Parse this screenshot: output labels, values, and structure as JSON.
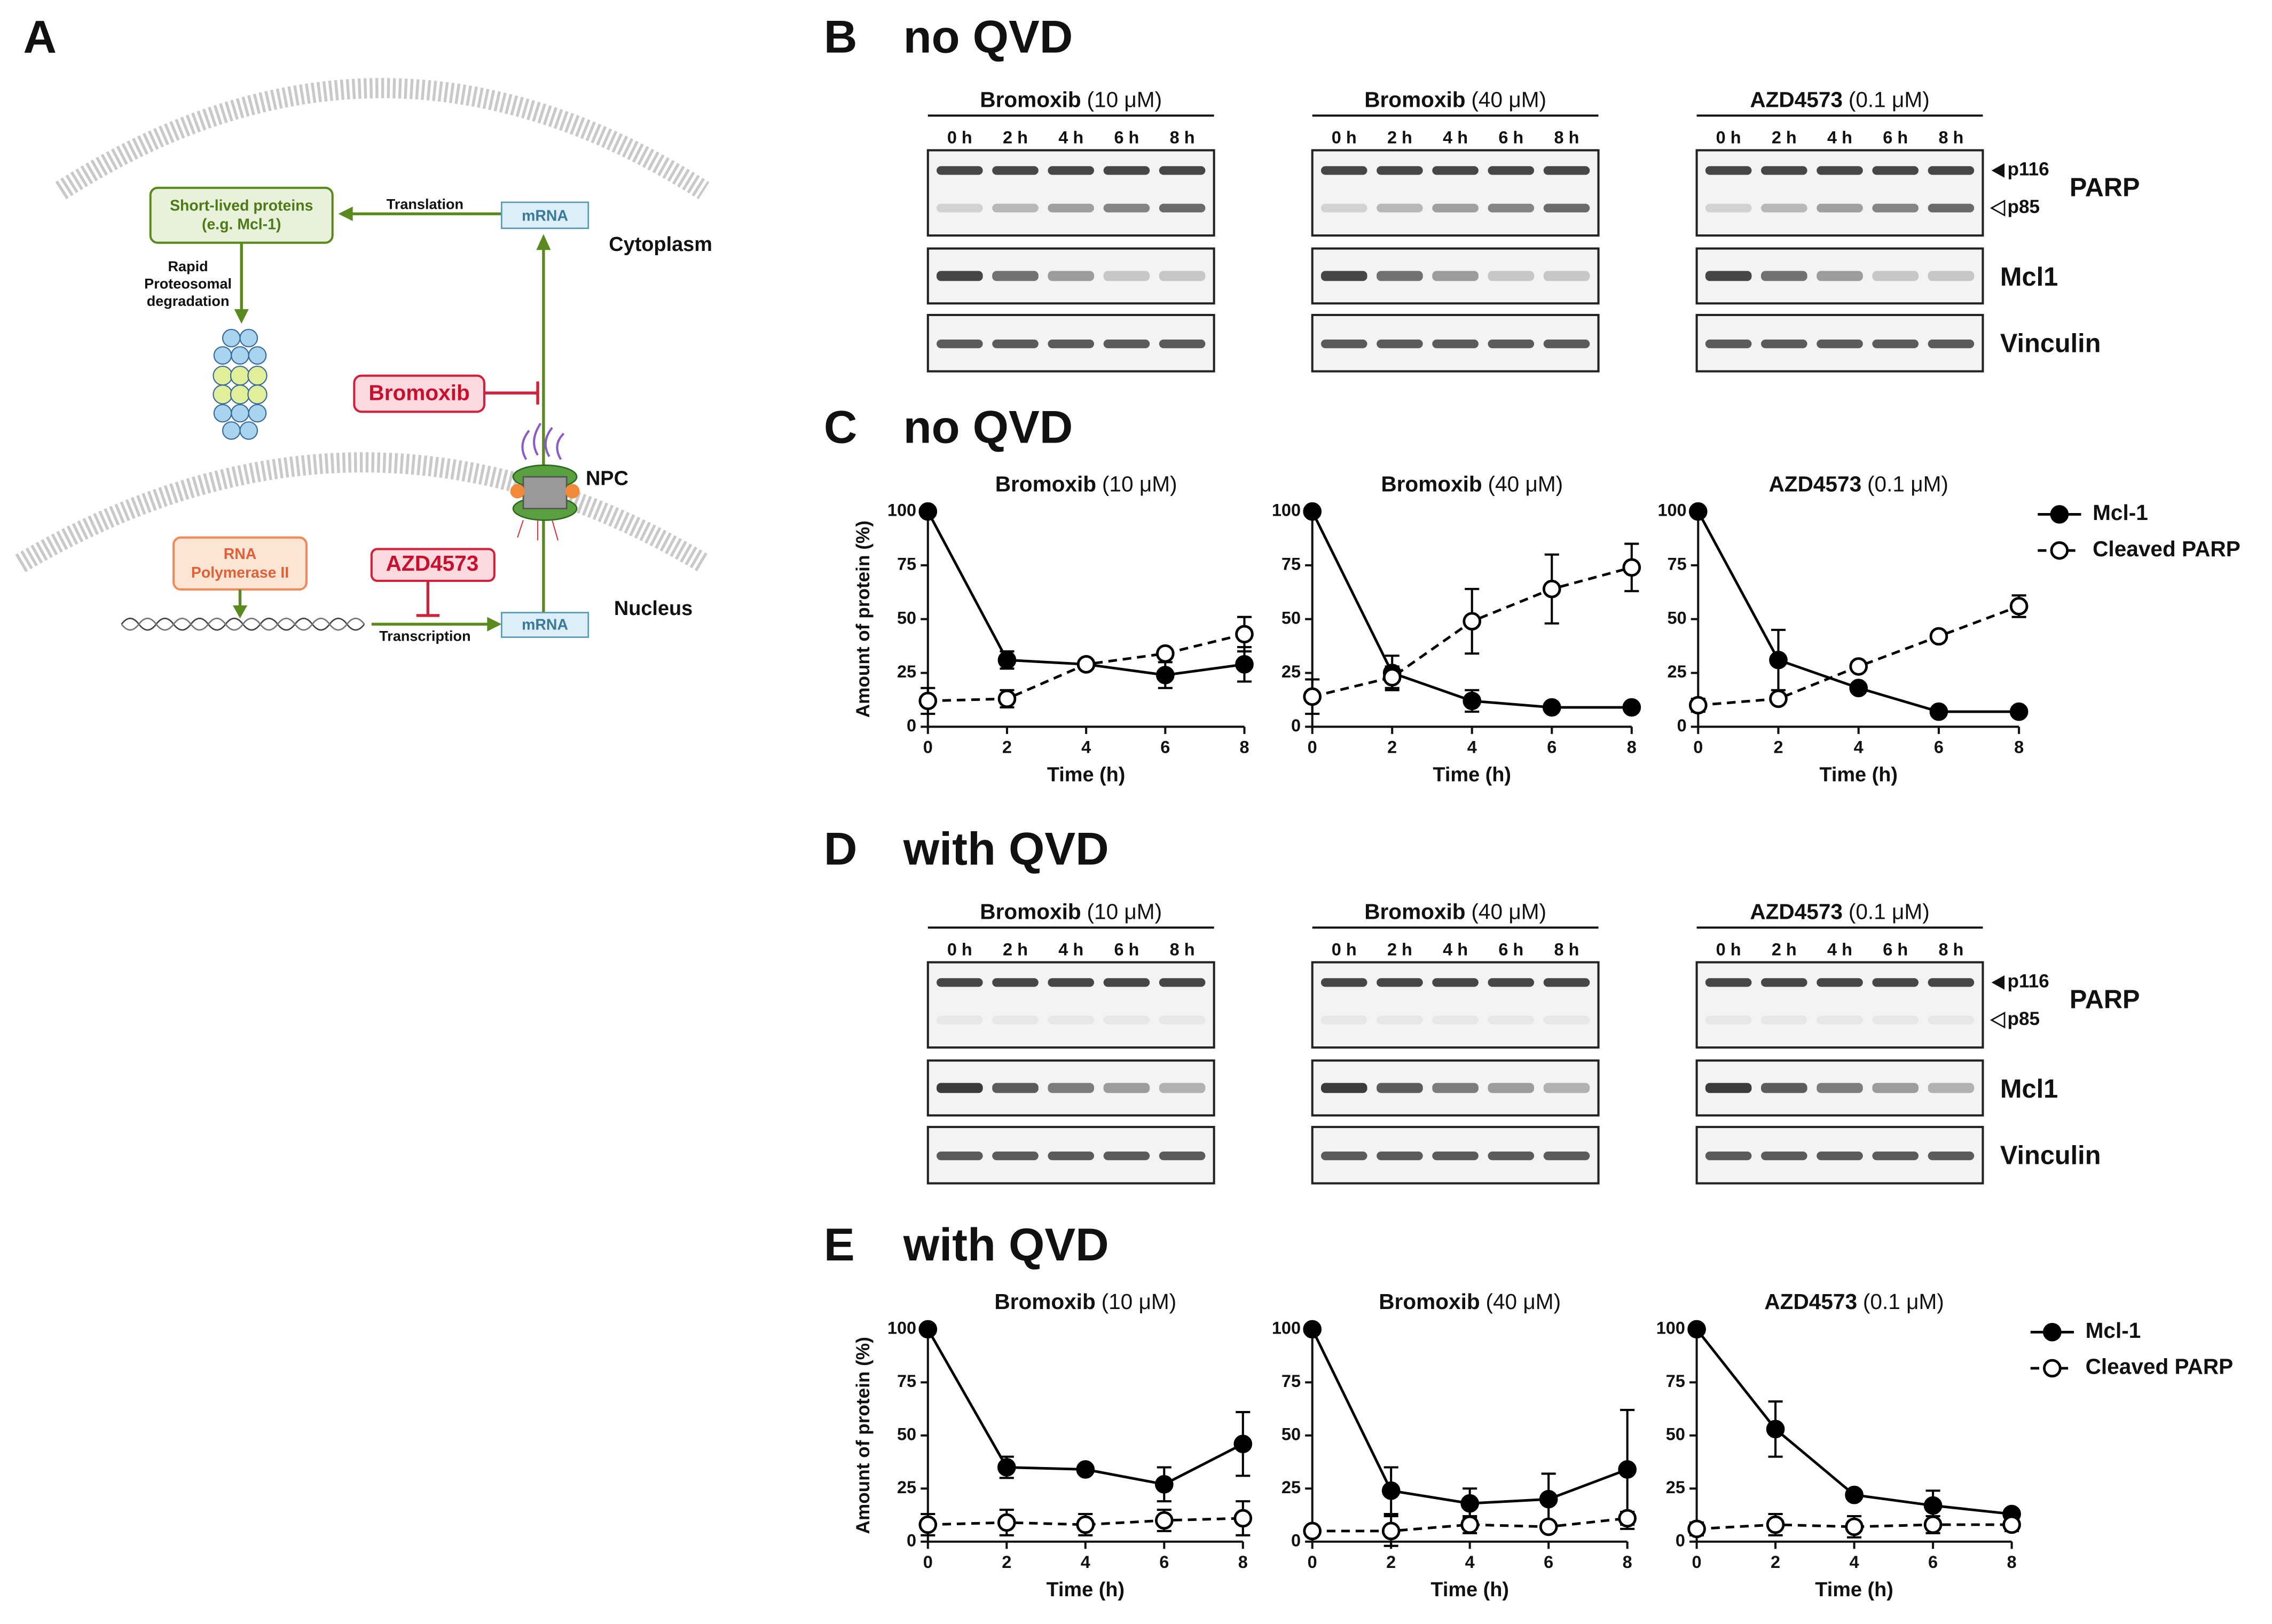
{
  "panel_a": {
    "letter": "A",
    "protein_box": [
      "Short-lived proteins",
      "(e.g. Mcl-1)"
    ],
    "translation": "Translation",
    "mrna_top": "mRNA",
    "cytoplasm": "Cytoplasm",
    "degradation": [
      "Rapid",
      "Proteosomal",
      "degradation"
    ],
    "bromoxib": "Bromoxib",
    "npc": "NPC",
    "polymerase": [
      "RNA",
      "Polymerase II"
    ],
    "azd": "AZD4573",
    "transcription": "Transcription",
    "mrna_bottom": "mRNA",
    "nucleus": "Nucleus"
  },
  "blot_panels": [
    {
      "letter": "B",
      "title": "no QVD",
      "groups": [
        {
          "drug": "Bromoxib",
          "dose": "(10 μM)",
          "lanes": [
            "0 h",
            "2 h",
            "4 h",
            "6 h",
            "8 h"
          ]
        },
        {
          "drug": "Bromoxib",
          "dose": "(40 μM)",
          "lanes": [
            "0 h",
            "2 h",
            "4 h",
            "6 h",
            "8 h"
          ]
        },
        {
          "drug": "AZD4573",
          "dose": "(0.1 μM)",
          "lanes": [
            "0 h",
            "2 h",
            "4 h",
            "6 h",
            "8 h"
          ]
        }
      ],
      "markers": [
        "p116",
        "p85"
      ],
      "proteins": [
        "PARP",
        "Mcl1",
        "Vinculin"
      ]
    },
    {
      "letter": "D",
      "title": "with QVD",
      "groups": [
        {
          "drug": "Bromoxib",
          "dose": "(10 μM)",
          "lanes": [
            "0 h",
            "2 h",
            "4 h",
            "6 h",
            "8 h"
          ]
        },
        {
          "drug": "Bromoxib",
          "dose": "(40 μM)",
          "lanes": [
            "0 h",
            "2 h",
            "4 h",
            "6 h",
            "8 h"
          ]
        },
        {
          "drug": "AZD4573",
          "dose": "(0.1 μM)",
          "lanes": [
            "0 h",
            "2 h",
            "4 h",
            "6 h",
            "8 h"
          ]
        }
      ],
      "markers": [
        "p116",
        "p85"
      ],
      "proteins": [
        "PARP",
        "Mcl1",
        "Vinculin"
      ]
    }
  ],
  "chart_panels": [
    {
      "letter": "C",
      "title": "no QVD"
    },
    {
      "letter": "E",
      "title": "with QVD"
    }
  ],
  "chart_data": [
    {
      "type": "line",
      "title": "Bromoxib",
      "title_note": "(10 μM)",
      "x_label": "Time (h)",
      "y_label": "Amount of protein (%)",
      "x": [
        0,
        2,
        4,
        6,
        8
      ],
      "xlim": [
        0,
        8
      ],
      "xticks": [
        0,
        2,
        4,
        6,
        8
      ],
      "ylim": [
        0,
        100
      ],
      "yticks": [
        0,
        25,
        50,
        75,
        100
      ],
      "series": [
        {
          "color": "#000000",
          "line_style": "solid",
          "marker": "filled",
          "values": [
            100,
            31,
            29,
            24,
            29
          ],
          "errors": [
            0,
            4,
            2,
            6,
            8
          ]
        },
        {
          "color": "#000000",
          "line_style": "dashed",
          "marker": "open",
          "values": [
            12,
            13,
            29,
            34,
            43
          ],
          "errors": [
            6,
            4,
            1,
            2,
            8
          ]
        }
      ]
    },
    {
      "type": "line",
      "title": "Bromoxib",
      "title_note": "(40 μM)",
      "x_label": "Time (h)",
      "x": [
        0,
        2,
        4,
        6,
        8
      ],
      "xlim": [
        0,
        8
      ],
      "xticks": [
        0,
        2,
        4,
        6,
        8
      ],
      "ylim": [
        0,
        100
      ],
      "yticks": [
        0,
        25,
        50,
        75,
        100
      ],
      "series": [
        {
          "color": "#000000",
          "line_style": "solid",
          "marker": "filled",
          "values": [
            100,
            25,
            12,
            9,
            9
          ],
          "errors": [
            0,
            8,
            5,
            1,
            1
          ]
        },
        {
          "color": "#000000",
          "line_style": "dashed",
          "marker": "open",
          "values": [
            14,
            23,
            49,
            64,
            74
          ],
          "errors": [
            8,
            5,
            15,
            16,
            11
          ]
        }
      ]
    },
    {
      "type": "line",
      "title": "AZD4573",
      "title_note": "(0.1 μM)",
      "x_label": "Time (h)",
      "legend": "right",
      "x": [
        0,
        2,
        4,
        6,
        8
      ],
      "xlim": [
        0,
        8
      ],
      "xticks": [
        0,
        2,
        4,
        6,
        8
      ],
      "ylim": [
        0,
        100
      ],
      "yticks": [
        0,
        25,
        50,
        75,
        100
      ],
      "series": [
        {
          "name": "Mcl-1",
          "color": "#000000",
          "line_style": "solid",
          "marker": "filled",
          "values": [
            100,
            31,
            18,
            7,
            7
          ],
          "errors": [
            0,
            14,
            1,
            1,
            1
          ]
        },
        {
          "name": "Cleaved PARP",
          "color": "#000000",
          "line_style": "dashed",
          "marker": "open",
          "values": [
            10,
            13,
            28,
            42,
            56
          ],
          "errors": [
            3,
            1,
            2,
            2,
            5
          ]
        }
      ]
    },
    {
      "type": "line",
      "title": "Bromoxib",
      "title_note": "(10 μM)",
      "x_label": "Time (h)",
      "y_label": "Amount of protein (%)",
      "x": [
        0,
        2,
        4,
        6,
        8
      ],
      "xlim": [
        0,
        8
      ],
      "xticks": [
        0,
        2,
        4,
        6,
        8
      ],
      "ylim": [
        0,
        100
      ],
      "yticks": [
        0,
        25,
        50,
        75,
        100
      ],
      "series": [
        {
          "color": "#000000",
          "line_style": "solid",
          "marker": "filled",
          "values": [
            100,
            35,
            34,
            27,
            46
          ],
          "errors": [
            0,
            5,
            1,
            8,
            15
          ]
        },
        {
          "color": "#000000",
          "line_style": "dashed",
          "marker": "open",
          "values": [
            8,
            9,
            8,
            10,
            11
          ],
          "errors": [
            5,
            6,
            5,
            5,
            8
          ]
        }
      ]
    },
    {
      "type": "line",
      "title": "Bromoxib",
      "title_note": "(40 μM)",
      "x_label": "Time (h)",
      "x": [
        0,
        2,
        4,
        6,
        8
      ],
      "xlim": [
        0,
        8
      ],
      "xticks": [
        0,
        2,
        4,
        6,
        8
      ],
      "ylim": [
        0,
        100
      ],
      "yticks": [
        0,
        25,
        50,
        75,
        100
      ],
      "series": [
        {
          "color": "#000000",
          "line_style": "solid",
          "marker": "filled",
          "values": [
            100,
            24,
            18,
            20,
            34
          ],
          "errors": [
            0,
            11,
            7,
            12,
            28
          ]
        },
        {
          "color": "#000000",
          "line_style": "dashed",
          "marker": "open",
          "values": [
            5,
            5,
            8,
            7,
            11
          ],
          "errors": [
            1,
            7,
            4,
            2,
            3
          ]
        }
      ]
    },
    {
      "type": "line",
      "title": "AZD4573",
      "title_note": "(0.1 μM)",
      "x_label": "Time (h)",
      "legend": "right",
      "x": [
        0,
        2,
        4,
        6,
        8
      ],
      "xlim": [
        0,
        8
      ],
      "xticks": [
        0,
        2,
        4,
        6,
        8
      ],
      "ylim": [
        0,
        100
      ],
      "yticks": [
        0,
        25,
        50,
        75,
        100
      ],
      "series": [
        {
          "name": "Mcl-1",
          "color": "#000000",
          "line_style": "solid",
          "marker": "filled",
          "values": [
            100,
            53,
            22,
            17,
            13
          ],
          "errors": [
            0,
            13,
            1,
            7,
            1
          ]
        },
        {
          "name": "Cleaved PARP",
          "color": "#000000",
          "line_style": "dashed",
          "marker": "open",
          "values": [
            6,
            8,
            7,
            8,
            8
          ],
          "errors": [
            3,
            5,
            5,
            4,
            3
          ]
        }
      ]
    }
  ]
}
